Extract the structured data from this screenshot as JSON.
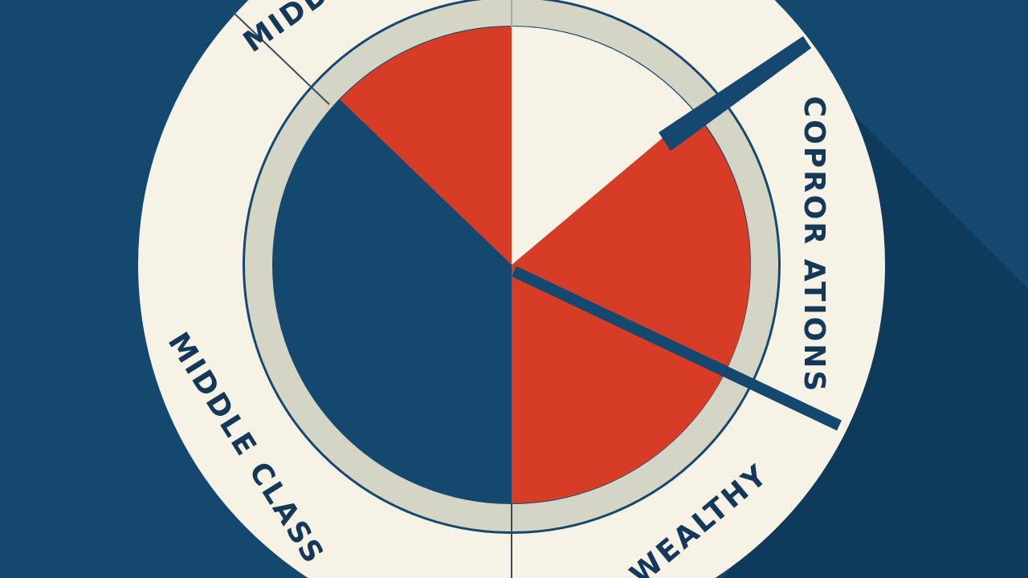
{
  "labels": {
    "top": "MIDDLE",
    "left": "MIDDLE CLASS",
    "right": "COPROR ATIONS",
    "bottom": "WEALTHY"
  }
}
